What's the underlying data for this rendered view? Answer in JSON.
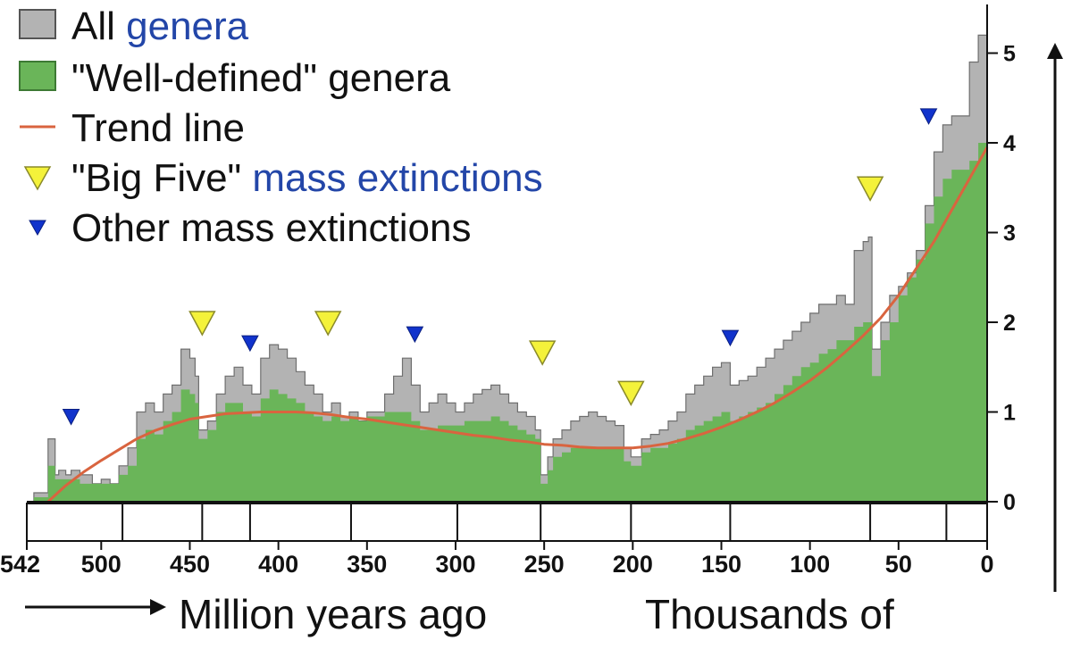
{
  "chart_data": {
    "type": "area",
    "xlabel": "Million years ago",
    "ylabel": "Thousands of",
    "xlim": [
      542,
      0
    ],
    "ylim": [
      0,
      5.3
    ],
    "x_ticks": [
      542,
      500,
      450,
      400,
      350,
      300,
      250,
      200,
      150,
      100,
      50,
      0
    ],
    "y_ticks": [
      0,
      1,
      2,
      3,
      4,
      5
    ],
    "grid": false,
    "legend": {
      "placement": "top-left",
      "items": [
        {
          "key": "all",
          "text": "All ",
          "link": "genera",
          "swatch": "gray-box"
        },
        {
          "key": "well",
          "text": "\"Well-defined\" genera",
          "link": "",
          "swatch": "green-box"
        },
        {
          "key": "trend",
          "text": "Trend line",
          "link": "",
          "swatch": "line"
        },
        {
          "key": "big",
          "text": "\"Big Five\" ",
          "link": "mass extinctions",
          "swatch": "yellow-triangle"
        },
        {
          "key": "other",
          "text": "Other mass extinctions",
          "link": "",
          "swatch": "blue-triangle"
        }
      ]
    },
    "colors": {
      "all": "#b3b3b3",
      "all_stroke": "#6f6f6f",
      "well": "#6ab559",
      "trend": "#d9643f",
      "big_five": "#f4f23a",
      "other": "#1133cc",
      "link": "#2346a8"
    },
    "series": [
      {
        "name": "All genera",
        "x": [
          542,
          538,
          530,
          526,
          524,
          520,
          517,
          512,
          505,
          500,
          495,
          490,
          485,
          480,
          475,
          470,
          465,
          460,
          455,
          450,
          447,
          445,
          440,
          435,
          430,
          425,
          420,
          415,
          410,
          405,
          400,
          395,
          390,
          385,
          380,
          375,
          370,
          365,
          360,
          355,
          350,
          345,
          340,
          335,
          330,
          325,
          320,
          315,
          310,
          305,
          300,
          295,
          290,
          285,
          280,
          275,
          270,
          265,
          260,
          255,
          252,
          248,
          245,
          240,
          235,
          230,
          225,
          220,
          215,
          210,
          205,
          201,
          199,
          195,
          190,
          185,
          180,
          175,
          170,
          165,
          160,
          155,
          150,
          145,
          140,
          135,
          130,
          125,
          120,
          115,
          110,
          105,
          100,
          95,
          90,
          85,
          80,
          75,
          70,
          67,
          65,
          60,
          55,
          50,
          45,
          40,
          35,
          30,
          25,
          20,
          15,
          10,
          5,
          0
        ],
        "values": [
          0,
          0.1,
          0.7,
          0.3,
          0.35,
          0.3,
          0.35,
          0.3,
          0.2,
          0.25,
          0.2,
          0.4,
          0.6,
          1.0,
          1.1,
          1.0,
          1.2,
          1.3,
          1.7,
          1.6,
          1.4,
          0.8,
          0.9,
          1.2,
          1.4,
          1.5,
          1.3,
          1.2,
          1.6,
          1.75,
          1.7,
          1.6,
          1.45,
          1.3,
          1.2,
          1.0,
          1.1,
          0.95,
          1.0,
          0.9,
          1.0,
          1.0,
          1.2,
          1.4,
          1.6,
          1.3,
          1.0,
          1.1,
          1.2,
          1.1,
          1.0,
          1.1,
          1.2,
          1.25,
          1.3,
          1.2,
          1.1,
          1.0,
          0.95,
          0.8,
          0.3,
          0.5,
          0.7,
          0.8,
          0.9,
          0.95,
          1.0,
          0.95,
          0.9,
          0.85,
          0.6,
          0.5,
          0.5,
          0.7,
          0.75,
          0.8,
          0.9,
          1.0,
          1.2,
          1.3,
          1.4,
          1.5,
          1.55,
          1.3,
          1.35,
          1.4,
          1.5,
          1.6,
          1.7,
          1.8,
          1.9,
          2.0,
          2.1,
          2.2,
          2.2,
          2.3,
          2.2,
          2.8,
          2.9,
          2.95,
          1.7,
          2.0,
          2.3,
          2.4,
          2.55,
          2.8,
          3.3,
          3.9,
          4.2,
          4.3,
          4.3,
          4.9,
          5.2,
          5.3
        ]
      },
      {
        "name": "\"Well-defined\" genera",
        "x": [
          542,
          538,
          530,
          526,
          524,
          520,
          517,
          512,
          505,
          500,
          495,
          490,
          485,
          480,
          475,
          470,
          465,
          460,
          455,
          450,
          447,
          445,
          440,
          435,
          430,
          425,
          420,
          415,
          410,
          405,
          400,
          395,
          390,
          385,
          380,
          375,
          370,
          365,
          360,
          355,
          350,
          345,
          340,
          335,
          330,
          325,
          320,
          315,
          310,
          305,
          300,
          295,
          290,
          285,
          280,
          275,
          270,
          265,
          260,
          255,
          252,
          248,
          245,
          240,
          235,
          230,
          225,
          220,
          215,
          210,
          205,
          201,
          199,
          195,
          190,
          185,
          180,
          175,
          170,
          165,
          160,
          155,
          150,
          145,
          140,
          135,
          130,
          125,
          120,
          115,
          110,
          105,
          100,
          95,
          90,
          85,
          80,
          75,
          70,
          67,
          65,
          60,
          55,
          50,
          45,
          40,
          35,
          30,
          25,
          20,
          15,
          10,
          5,
          0
        ],
        "values": [
          0,
          0.05,
          0.4,
          0.25,
          0.25,
          0.25,
          0.25,
          0.2,
          0.2,
          0.2,
          0.2,
          0.3,
          0.4,
          0.7,
          0.8,
          0.75,
          0.9,
          1.0,
          1.25,
          1.2,
          1.1,
          0.7,
          0.8,
          1.0,
          1.1,
          1.1,
          1.0,
          0.95,
          1.15,
          1.25,
          1.2,
          1.15,
          1.1,
          1.0,
          0.95,
          0.9,
          0.95,
          0.9,
          0.95,
          0.9,
          0.95,
          0.95,
          1.0,
          1.0,
          1.0,
          0.9,
          0.8,
          0.8,
          0.85,
          0.85,
          0.85,
          0.9,
          0.9,
          0.9,
          0.95,
          0.9,
          0.85,
          0.8,
          0.75,
          0.7,
          0.2,
          0.35,
          0.5,
          0.55,
          0.6,
          0.6,
          0.6,
          0.6,
          0.6,
          0.6,
          0.45,
          0.4,
          0.4,
          0.55,
          0.6,
          0.6,
          0.65,
          0.7,
          0.8,
          0.85,
          0.9,
          0.95,
          1.0,
          0.9,
          0.95,
          1.0,
          1.05,
          1.1,
          1.2,
          1.3,
          1.4,
          1.5,
          1.55,
          1.65,
          1.7,
          1.8,
          1.8,
          1.95,
          2.0,
          2.0,
          1.4,
          1.8,
          2.0,
          2.3,
          2.5,
          2.7,
          3.1,
          3.4,
          3.6,
          3.7,
          3.7,
          3.8,
          4.0,
          4.2
        ]
      },
      {
        "name": "Trend line",
        "x": [
          530,
          520,
          510,
          500,
          490,
          480,
          470,
          460,
          450,
          440,
          430,
          420,
          410,
          400,
          390,
          380,
          370,
          360,
          350,
          340,
          330,
          320,
          310,
          300,
          290,
          280,
          270,
          260,
          250,
          240,
          230,
          220,
          210,
          200,
          190,
          180,
          170,
          160,
          150,
          140,
          130,
          120,
          110,
          100,
          90,
          80,
          70,
          60,
          50,
          40,
          30,
          20,
          10,
          0
        ],
        "values": [
          0,
          0.18,
          0.33,
          0.46,
          0.58,
          0.7,
          0.79,
          0.86,
          0.92,
          0.95,
          0.98,
          0.99,
          1.0,
          1.0,
          1.0,
          0.99,
          0.97,
          0.94,
          0.92,
          0.89,
          0.86,
          0.83,
          0.8,
          0.77,
          0.74,
          0.72,
          0.69,
          0.67,
          0.64,
          0.63,
          0.61,
          0.6,
          0.6,
          0.6,
          0.62,
          0.65,
          0.7,
          0.76,
          0.83,
          0.91,
          1.0,
          1.1,
          1.22,
          1.35,
          1.5,
          1.67,
          1.85,
          2.05,
          2.3,
          2.6,
          2.9,
          3.25,
          3.6,
          3.95
        ]
      }
    ],
    "big_five_extinctions": [
      {
        "x": 443,
        "y": 2.0
      },
      {
        "x": 372,
        "y": 2.0
      },
      {
        "x": 251,
        "y": 1.67
      },
      {
        "x": 201,
        "y": 1.22
      },
      {
        "x": 66,
        "y": 3.5
      }
    ],
    "other_extinctions": [
      {
        "x": 517,
        "y": 0.95
      },
      {
        "x": 416,
        "y": 1.77
      },
      {
        "x": 323,
        "y": 1.87
      },
      {
        "x": 145,
        "y": 1.83
      },
      {
        "x": 33,
        "y": 4.3
      }
    ]
  }
}
